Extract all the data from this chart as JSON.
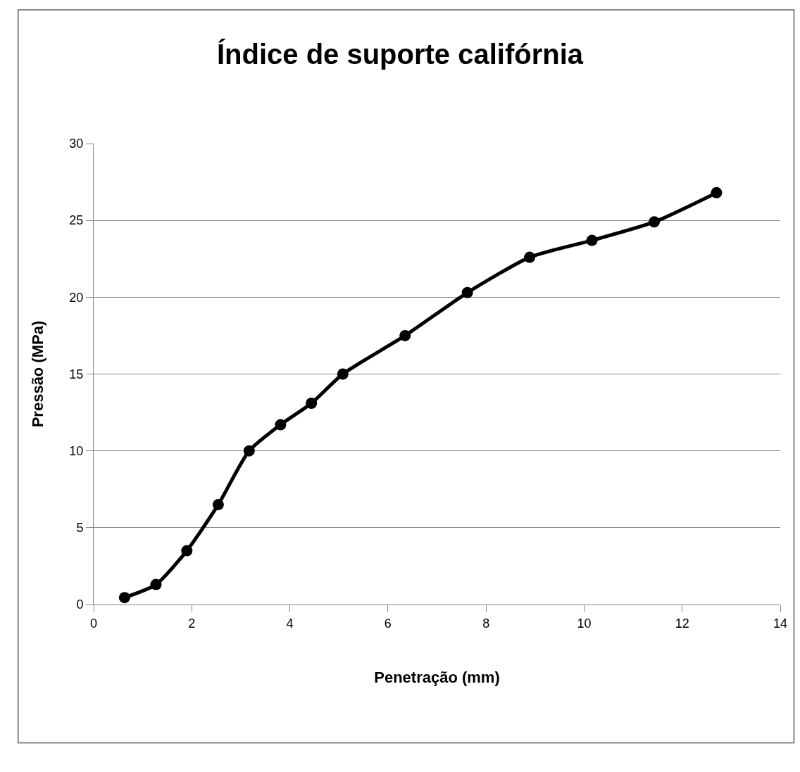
{
  "chart_data": {
    "type": "line",
    "title": "Índice de suporte califórnia",
    "xlabel": "Penetração (mm)",
    "ylabel": "Pressão (MPa)",
    "x": [
      0.63,
      1.27,
      1.9,
      2.54,
      3.17,
      3.81,
      4.44,
      5.08,
      6.35,
      7.62,
      8.89,
      10.16,
      11.43,
      12.7
    ],
    "series": [
      {
        "color": "#000000",
        "values": [
          0.45,
          1.3,
          3.5,
          6.5,
          10,
          11.7,
          13.1,
          15,
          17.5,
          20.3,
          22.6,
          23.7,
          24.9,
          26.8
        ]
      }
    ],
    "xlim": [
      0,
      14
    ],
    "xticks": [
      0,
      2,
      4,
      6,
      8,
      10,
      12,
      14
    ],
    "ylim": [
      0,
      30
    ],
    "yticks": [
      0,
      5,
      10,
      15,
      20,
      25,
      30
    ],
    "grid": "y",
    "legend": false,
    "marker": "circle",
    "line_style": "solid"
  }
}
